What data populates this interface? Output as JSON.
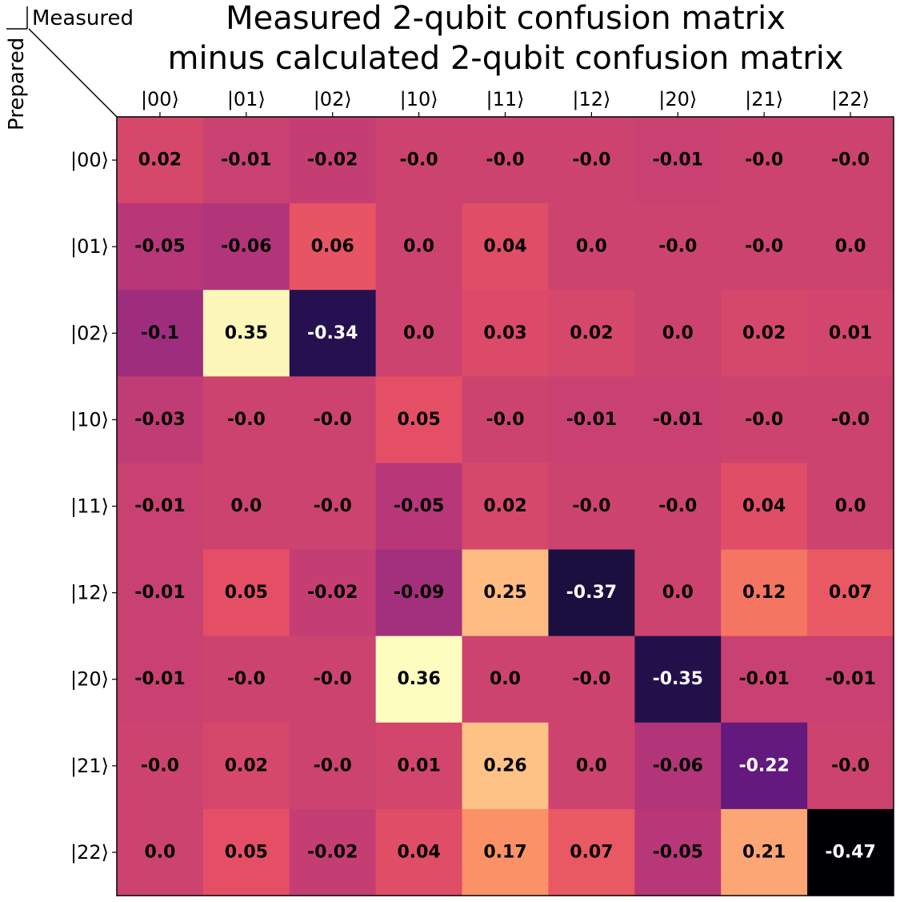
{
  "chart_data": {
    "type": "heatmap",
    "title_lines": [
      "Measured 2-qubit confusion matrix",
      "minus calculated 2-qubit confusion matrix"
    ],
    "xlabel": "Measured",
    "ylabel": "Prepared",
    "x_categories": [
      "|00⟩",
      "|01⟩",
      "|02⟩",
      "|10⟩",
      "|11⟩",
      "|12⟩",
      "|20⟩",
      "|21⟩",
      "|22⟩"
    ],
    "y_categories": [
      "|00⟩",
      "|01⟩",
      "|02⟩",
      "|10⟩",
      "|11⟩",
      "|12⟩",
      "|20⟩",
      "|21⟩",
      "|22⟩"
    ],
    "values": [
      [
        0.02,
        -0.01,
        -0.02,
        -0.0,
        -0.0,
        -0.0,
        -0.01,
        -0.0,
        -0.0
      ],
      [
        -0.05,
        -0.06,
        0.06,
        0.0,
        0.04,
        0.0,
        -0.0,
        -0.0,
        0.0
      ],
      [
        -0.1,
        0.35,
        -0.34,
        0.0,
        0.03,
        0.02,
        0.0,
        0.02,
        0.01
      ],
      [
        -0.03,
        -0.0,
        -0.0,
        0.05,
        -0.0,
        -0.01,
        -0.01,
        -0.0,
        -0.0
      ],
      [
        -0.01,
        0.0,
        -0.0,
        -0.05,
        0.02,
        -0.0,
        -0.0,
        0.04,
        0.0
      ],
      [
        -0.01,
        0.05,
        -0.02,
        -0.09,
        0.25,
        -0.37,
        0.0,
        0.12,
        0.07
      ],
      [
        -0.01,
        -0.0,
        -0.0,
        0.36,
        0.0,
        -0.0,
        -0.35,
        -0.01,
        -0.01
      ],
      [
        -0.0,
        0.02,
        -0.0,
        0.01,
        0.26,
        0.0,
        -0.06,
        -0.22,
        -0.0
      ],
      [
        0.0,
        0.05,
        -0.02,
        0.04,
        0.17,
        0.07,
        -0.05,
        0.21,
        -0.47
      ]
    ],
    "labels": [
      [
        "0.02",
        "-0.01",
        "-0.02",
        "-0.0",
        "-0.0",
        "-0.0",
        "-0.01",
        "-0.0",
        "-0.0"
      ],
      [
        "-0.05",
        "-0.06",
        "0.06",
        "0.0",
        "0.04",
        "0.0",
        "-0.0",
        "-0.0",
        "0.0"
      ],
      [
        "-0.1",
        "0.35",
        "-0.34",
        "0.0",
        "0.03",
        "0.02",
        "0.0",
        "0.02",
        "0.01"
      ],
      [
        "-0.03",
        "-0.0",
        "-0.0",
        "0.05",
        "-0.0",
        "-0.01",
        "-0.01",
        "-0.0",
        "-0.0"
      ],
      [
        "-0.01",
        "0.0",
        "-0.0",
        "-0.05",
        "0.02",
        "-0.0",
        "-0.0",
        "0.04",
        "0.0"
      ],
      [
        "-0.01",
        "0.05",
        "-0.02",
        "-0.09",
        "0.25",
        "-0.37",
        "0.0",
        "0.12",
        "0.07"
      ],
      [
        "-0.01",
        "-0.0",
        "-0.0",
        "0.36",
        "0.0",
        "-0.0",
        "-0.35",
        "-0.01",
        "-0.01"
      ],
      [
        "-0.0",
        "0.02",
        "-0.0",
        "0.01",
        "0.26",
        "0.0",
        "-0.06",
        "-0.22",
        "-0.0"
      ],
      [
        "0.0",
        "0.05",
        "-0.02",
        "0.04",
        "0.17",
        "0.07",
        "-0.05",
        "0.21",
        "-0.47"
      ]
    ],
    "colormap": "magma",
    "value_range": [
      -0.47,
      0.36
    ],
    "grid": false
  }
}
